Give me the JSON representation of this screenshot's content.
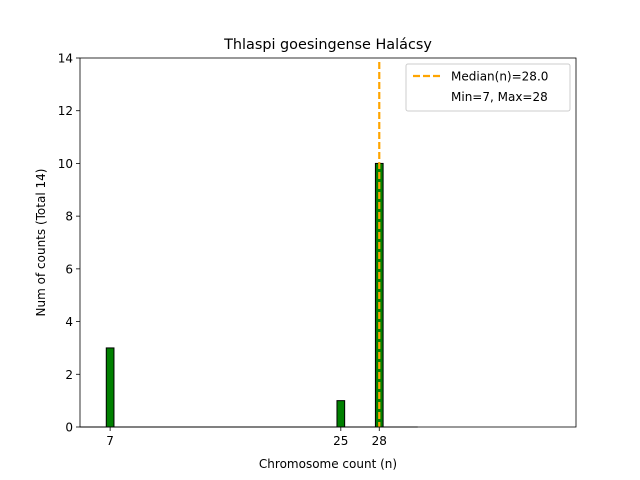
{
  "chart_data": {
    "type": "bar",
    "title": "Thlaspi goesingense Halácsy",
    "xlabel": "Chromosome count (n)",
    "ylabel": "Num of counts     (Total 14)",
    "xlim": [
      4.65,
      43.35
    ],
    "ylim": [
      0,
      14
    ],
    "x_ticks": [
      7,
      25,
      28
    ],
    "y_ticks": [
      0,
      2,
      4,
      6,
      8,
      10,
      12,
      14
    ],
    "bar_width": 0.6,
    "bars": [
      {
        "x": 7,
        "value": 3
      },
      {
        "x": 25,
        "value": 1
      },
      {
        "x": 28,
        "value": 10
      }
    ],
    "bar_color": "#008000",
    "bar_edge_color": "#000000",
    "baseline_range": [
      4.65,
      31
    ],
    "median_line": {
      "x": 28.0,
      "color": "#FFA500"
    },
    "legend": {
      "placement": "top-right",
      "entries": [
        "Median(n)=28.0",
        "Min=7, Max=28"
      ]
    }
  }
}
